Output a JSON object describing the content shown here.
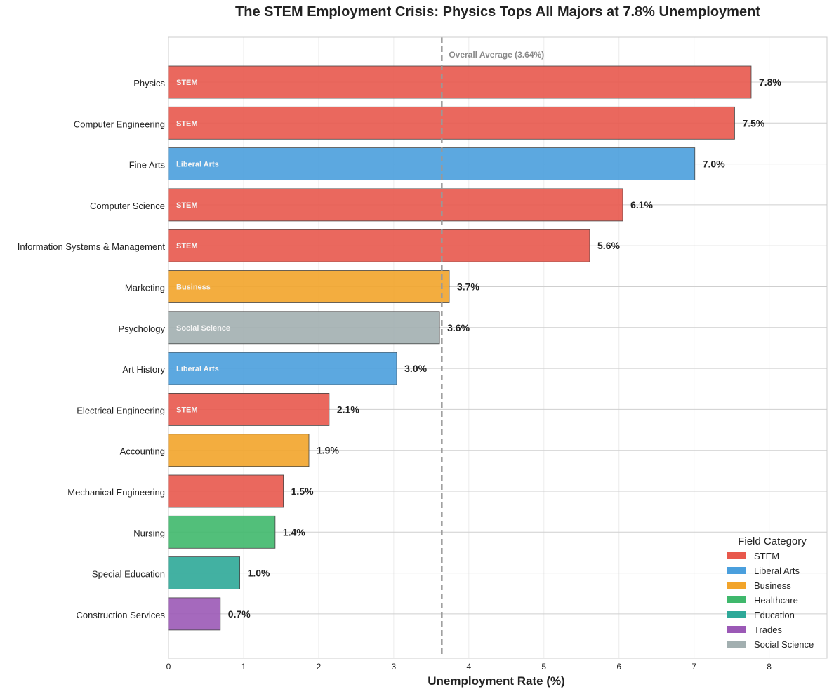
{
  "chart_data": {
    "type": "bar",
    "orientation": "horizontal",
    "title": "The STEM Employment Crisis: Physics Tops All Majors at 7.8% Unemployment",
    "xlabel": "Unemployment Rate (%)",
    "ylabel": "",
    "xlim": [
      0,
      8.77
    ],
    "xticks": [
      0,
      1,
      2,
      3,
      4,
      5,
      6,
      7,
      8
    ],
    "grid": true,
    "legend_title": "Field Category",
    "legend_position": "bottom-right",
    "reference_line": {
      "value": 3.64,
      "label": "Overall Average (3.64%)",
      "style": "dashed",
      "color": "#999999"
    },
    "category_colors": {
      "STEM": "#e8584c",
      "Liberal Arts": "#4a9fdd",
      "Business": "#f2a42a",
      "Healthcare": "#3fb86c",
      "Education": "#2ea898",
      "Trades": "#9b59b6",
      "Social Science": "#a2afb0"
    },
    "legend": [
      "STEM",
      "Liberal Arts",
      "Business",
      "Healthcare",
      "Education",
      "Trades",
      "Social Science"
    ],
    "bars": [
      {
        "major": "Physics",
        "value": 7.76,
        "label": "7.8%",
        "field": "STEM",
        "inbar": "STEM"
      },
      {
        "major": "Computer Engineering",
        "value": 7.54,
        "label": "7.5%",
        "field": "STEM",
        "inbar": "STEM"
      },
      {
        "major": "Fine Arts",
        "value": 7.01,
        "label": "7.0%",
        "field": "Liberal Arts",
        "inbar": "Liberal Arts"
      },
      {
        "major": "Computer Science",
        "value": 6.05,
        "label": "6.1%",
        "field": "STEM",
        "inbar": "STEM"
      },
      {
        "major": "Information Systems & Management",
        "value": 5.61,
        "label": "5.6%",
        "field": "STEM",
        "inbar": "STEM"
      },
      {
        "major": "Marketing",
        "value": 3.74,
        "label": "3.7%",
        "field": "Business",
        "inbar": "Business"
      },
      {
        "major": "Psychology",
        "value": 3.61,
        "label": "3.6%",
        "field": "Social Science",
        "inbar": "Social Science"
      },
      {
        "major": "Art History",
        "value": 3.04,
        "label": "3.0%",
        "field": "Liberal Arts",
        "inbar": "Liberal Arts"
      },
      {
        "major": "Electrical Engineering",
        "value": 2.14,
        "label": "2.1%",
        "field": "STEM",
        "inbar": "STEM"
      },
      {
        "major": "Accounting",
        "value": 1.87,
        "label": "1.9%",
        "field": "Business",
        "inbar": ""
      },
      {
        "major": "Mechanical Engineering",
        "value": 1.53,
        "label": "1.5%",
        "field": "STEM",
        "inbar": ""
      },
      {
        "major": "Nursing",
        "value": 1.42,
        "label": "1.4%",
        "field": "Healthcare",
        "inbar": ""
      },
      {
        "major": "Special Education",
        "value": 0.95,
        "label": "1.0%",
        "field": "Education",
        "inbar": ""
      },
      {
        "major": "Construction Services",
        "value": 0.69,
        "label": "0.7%",
        "field": "Trades",
        "inbar": ""
      }
    ]
  }
}
